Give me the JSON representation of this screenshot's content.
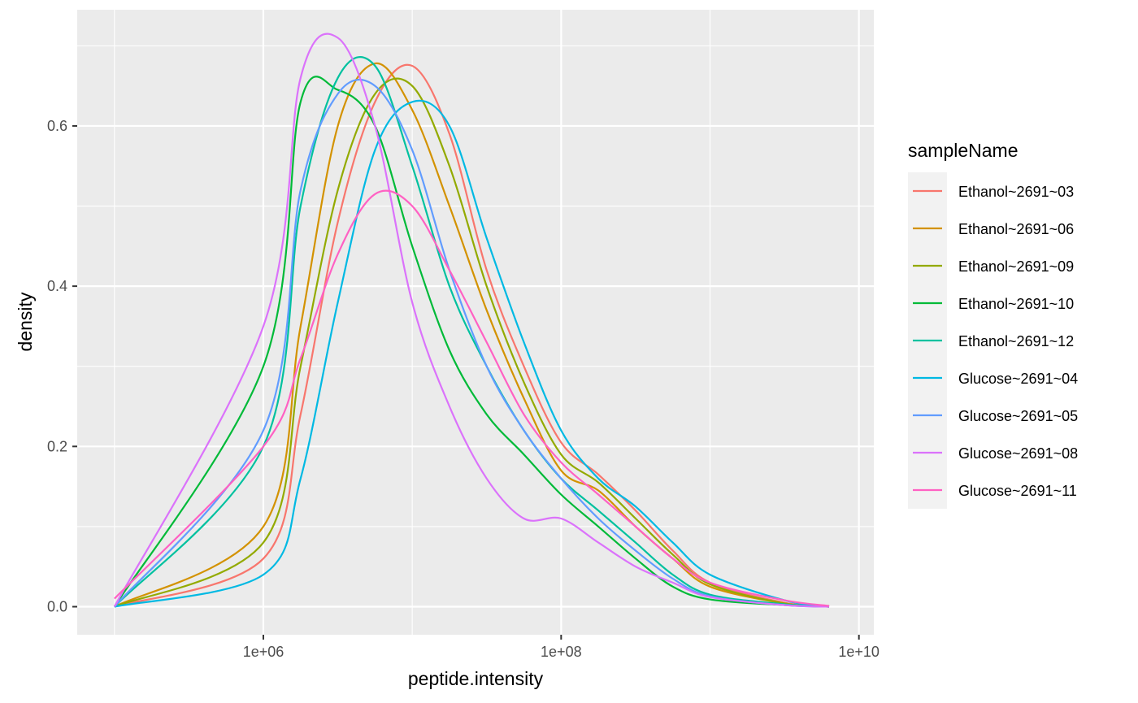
{
  "chart_data": {
    "type": "line",
    "title": "",
    "xlabel": "peptide.intensity",
    "ylabel": "density",
    "x_scale": "log10",
    "x_tick_labels": [
      "1e+06",
      "1e+08",
      "1e+10"
    ],
    "x_ticks": [
      1000000,
      100000000,
      10000000000
    ],
    "xlim": [
      56234,
      12589254118
    ],
    "y_ticks": [
      0.0,
      0.2,
      0.4,
      0.6
    ],
    "y_tick_labels": [
      "0.0",
      "0.2",
      "0.4",
      "0.6"
    ],
    "ylim": [
      -0.035,
      0.745
    ],
    "grid": true,
    "legend_title": "sampleName",
    "legend_position": "right",
    "series": [
      {
        "name": "Ethanol~2691~03",
        "color": "#F8766D",
        "x": [
          100000,
          1000000,
          1778279,
          3162278,
          5623413,
          10000000,
          17782794,
          31622777,
          56234133,
          100000000,
          177827941,
          316227766,
          562341325,
          1000000000,
          3162277660,
          6309573445
        ],
        "y": [
          0.0,
          0.06,
          0.24,
          0.48,
          0.63,
          0.675,
          0.59,
          0.42,
          0.3,
          0.205,
          0.165,
          0.12,
          0.07,
          0.03,
          0.005,
          0.0
        ]
      },
      {
        "name": "Ethanol~2691~06",
        "color": "#D39200",
        "x": [
          100000,
          1000000,
          1778279,
          3162278,
          5623413,
          10000000,
          17782794,
          31622777,
          56234133,
          100000000,
          177827941,
          316227766,
          562341325,
          1000000000,
          3162277660,
          6309573445
        ],
        "y": [
          0.0,
          0.1,
          0.35,
          0.6,
          0.678,
          0.62,
          0.5,
          0.37,
          0.26,
          0.17,
          0.145,
          0.1,
          0.06,
          0.025,
          0.004,
          0.0
        ]
      },
      {
        "name": "Ethanol~2691~09",
        "color": "#93AA00",
        "x": [
          100000,
          1000000,
          1778279,
          3162278,
          5623413,
          10000000,
          17782794,
          31622777,
          56234133,
          100000000,
          177827941,
          316227766,
          562341325,
          1000000000,
          3162277660,
          6309573445
        ],
        "y": [
          0.0,
          0.08,
          0.3,
          0.52,
          0.64,
          0.65,
          0.55,
          0.4,
          0.28,
          0.19,
          0.155,
          0.11,
          0.065,
          0.028,
          0.004,
          0.0
        ]
      },
      {
        "name": "Ethanol~2691~10",
        "color": "#00BA38",
        "x": [
          100000,
          1000000,
          1778279,
          3162278,
          5623413,
          10000000,
          17782794,
          31622777,
          56234133,
          100000000,
          177827941,
          316227766,
          562341325,
          1000000000,
          3162277660,
          6309573445
        ],
        "y": [
          0.0,
          0.3,
          0.63,
          0.645,
          0.6,
          0.45,
          0.32,
          0.24,
          0.19,
          0.14,
          0.1,
          0.06,
          0.025,
          0.009,
          0.002,
          0.0
        ]
      },
      {
        "name": "Ethanol~2691~12",
        "color": "#00C19F",
        "x": [
          100000,
          1000000,
          1778279,
          3162278,
          5623413,
          10000000,
          17782794,
          31622777,
          56234133,
          100000000,
          177827941,
          316227766,
          562341325,
          1000000000,
          3162277660,
          6309573445
        ],
        "y": [
          0.0,
          0.2,
          0.5,
          0.66,
          0.675,
          0.55,
          0.4,
          0.3,
          0.22,
          0.16,
          0.12,
          0.08,
          0.04,
          0.015,
          0.003,
          0.0
        ]
      },
      {
        "name": "Glucose~2691~04",
        "color": "#00B9E3",
        "x": [
          100000,
          1000000,
          1778279,
          3162278,
          5623413,
          10000000,
          17782794,
          31622777,
          56234133,
          100000000,
          177827941,
          316227766,
          562341325,
          1000000000,
          3162277660,
          6309573445
        ],
        "y": [
          0.0,
          0.04,
          0.16,
          0.38,
          0.57,
          0.63,
          0.6,
          0.46,
          0.33,
          0.22,
          0.16,
          0.125,
          0.08,
          0.04,
          0.008,
          0.0
        ]
      },
      {
        "name": "Glucose~2691~05",
        "color": "#619CFF",
        "x": [
          100000,
          1000000,
          1778279,
          3162278,
          5623413,
          10000000,
          17782794,
          31622777,
          56234133,
          100000000,
          177827941,
          316227766,
          562341325,
          1000000000,
          3162277660,
          6309573445
        ],
        "y": [
          0.0,
          0.22,
          0.52,
          0.64,
          0.65,
          0.57,
          0.42,
          0.3,
          0.22,
          0.16,
          0.11,
          0.07,
          0.035,
          0.013,
          0.002,
          0.0
        ]
      },
      {
        "name": "Glucose~2691~08",
        "color": "#DB72FB",
        "x": [
          100000,
          1000000,
          1778279,
          3162278,
          5623413,
          10000000,
          17782794,
          31622777,
          56234133,
          100000000,
          177827941,
          316227766,
          562341325,
          1000000000,
          3162277660,
          6309573445
        ],
        "y": [
          0.0,
          0.35,
          0.66,
          0.71,
          0.6,
          0.38,
          0.25,
          0.16,
          0.11,
          0.11,
          0.08,
          0.05,
          0.03,
          0.012,
          0.002,
          0.0
        ]
      },
      {
        "name": "Glucose~2691~11",
        "color": "#FF61C3",
        "x": [
          100000,
          1000000,
          1778279,
          3162278,
          5623413,
          10000000,
          17782794,
          31622777,
          56234133,
          100000000,
          177827941,
          316227766,
          562341325,
          1000000000,
          3162277660,
          6309573445
        ],
        "y": [
          0.01,
          0.2,
          0.31,
          0.44,
          0.515,
          0.5,
          0.42,
          0.33,
          0.24,
          0.18,
          0.14,
          0.1,
          0.06,
          0.03,
          0.008,
          0.001
        ]
      }
    ]
  }
}
